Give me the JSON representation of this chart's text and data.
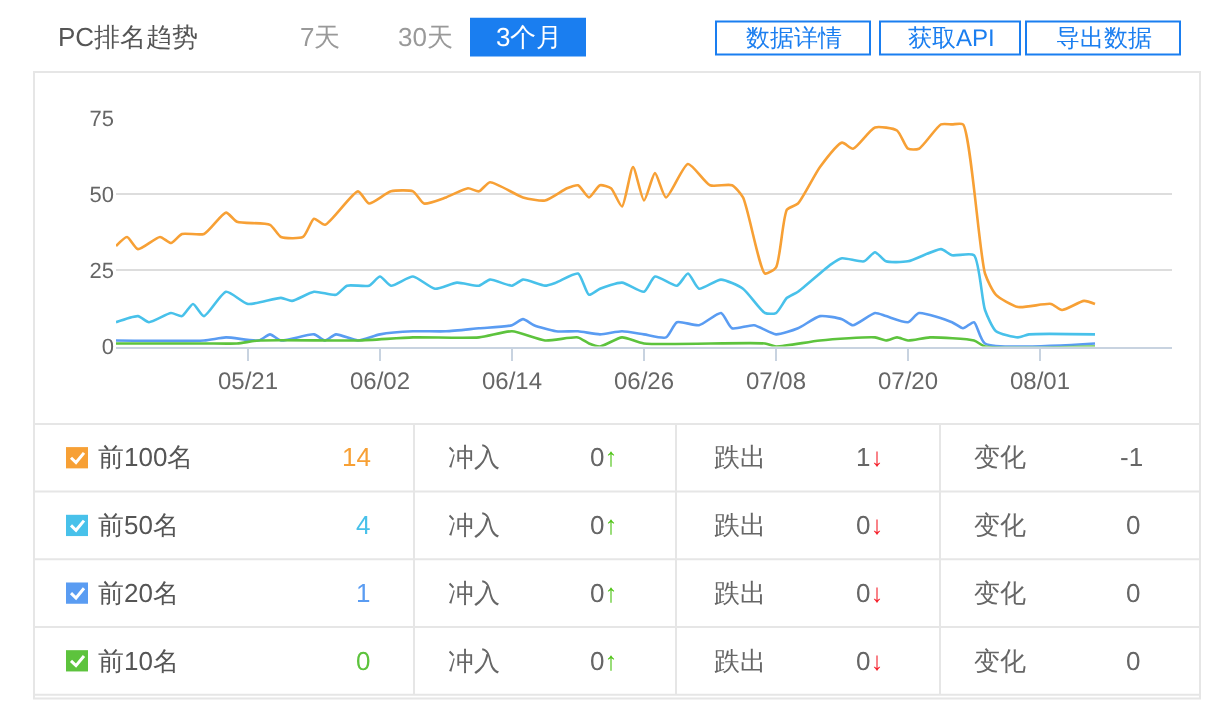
{
  "chart_data": {
    "type": "line",
    "title": "PC排名趋势",
    "xlim": [
      "--05-09",
      "--08-13"
    ],
    "xticks": [
      {
        "value": "--05-21",
        "label": "05/21"
      },
      {
        "value": "--06-02",
        "label": "06/02"
      },
      {
        "value": "--06-14",
        "label": "06/14"
      },
      {
        "value": "--06-26",
        "label": "06/26"
      },
      {
        "value": "--07-08",
        "label": "07/08"
      },
      {
        "value": "--07-20",
        "label": "07/20"
      },
      {
        "value": "--08-01",
        "label": "08/01"
      }
    ],
    "ylim": [
      0,
      75
    ],
    "yticks": [
      0,
      25,
      50,
      75
    ],
    "grid": "y",
    "marker": "none",
    "line_style": "solid",
    "legend": "bottom",
    "series": [
      {
        "name": "前100名",
        "color": "#f7a035",
        "x": [
          "--05-09",
          "--05-10",
          "--05-11",
          "--05-13",
          "--05-14",
          "--05-15",
          "--05-17",
          "--05-19",
          "--05-20",
          "--05-23",
          "--05-24",
          "--05-26",
          "--05-27",
          "--05-28",
          "--05-31",
          "--06-01",
          "--06-03",
          "--06-05",
          "--06-06",
          "--06-08",
          "--06-10",
          "--06-11",
          "--06-12",
          "--06-15",
          "--06-17",
          "--06-19",
          "--06-20",
          "--06-21",
          "--06-22",
          "--06-23",
          "--06-24",
          "--06-25",
          "--06-26",
          "--06-27",
          "--06-28",
          "--06-30",
          "--07-02",
          "--07-04",
          "--07-05",
          "--07-07",
          "--07-08",
          "--07-09",
          "--07-10",
          "--07-12",
          "--07-14",
          "--07-15",
          "--07-17",
          "--07-19",
          "--07-20",
          "--07-21",
          "--07-23",
          "--07-24",
          "--07-25",
          "--07-27",
          "--07-28",
          "--07-30",
          "--08-02",
          "--08-03",
          "--08-05",
          "--08-06"
        ],
        "values": [
          33,
          36,
          32,
          36,
          34,
          37,
          37,
          44,
          41,
          40,
          36,
          36,
          42,
          40,
          51,
          47,
          51,
          51,
          47,
          49,
          52,
          51,
          54,
          49,
          48,
          52,
          53,
          49,
          53,
          52,
          46,
          59,
          48,
          57,
          49,
          60,
          53,
          53,
          49,
          24,
          26,
          45,
          47,
          59,
          67,
          65,
          72,
          71,
          65,
          65,
          73,
          73,
          73,
          24,
          17,
          13,
          14,
          12,
          15,
          14
        ]
      },
      {
        "name": "前50名",
        "color": "#48c1ea",
        "x": [
          "--05-09",
          "--05-11",
          "--05-12",
          "--05-14",
          "--05-15",
          "--05-16",
          "--05-17",
          "--05-19",
          "--05-21",
          "--05-24",
          "--05-25",
          "--05-27",
          "--05-29",
          "--05-30",
          "--06-01",
          "--06-02",
          "--06-03",
          "--06-05",
          "--06-07",
          "--06-09",
          "--06-11",
          "--06-12",
          "--06-14",
          "--06-15",
          "--06-17",
          "--06-18",
          "--06-20",
          "--06-21",
          "--06-22",
          "--06-24",
          "--06-26",
          "--06-27",
          "--06-29",
          "--06-30",
          "--07-01",
          "--07-03",
          "--07-05",
          "--07-07",
          "--07-08",
          "--07-09",
          "--07-10",
          "--07-13",
          "--07-14",
          "--07-16",
          "--07-17",
          "--07-18",
          "--07-20",
          "--07-23",
          "--07-24",
          "--07-26",
          "--07-27",
          "--07-28",
          "--07-30",
          "--07-31",
          "--08-06"
        ],
        "values": [
          8,
          10,
          8,
          11,
          10,
          14,
          10,
          18,
          14,
          16,
          15,
          18,
          17,
          20,
          20,
          23,
          20,
          23,
          19,
          21,
          20,
          22,
          20,
          22,
          20,
          21,
          24,
          17,
          19,
          21,
          18,
          23,
          20,
          24,
          19,
          22,
          19,
          11,
          11,
          16,
          18,
          27,
          29,
          28,
          31,
          28,
          28,
          32,
          30,
          30,
          12,
          5,
          3,
          4,
          4
        ]
      },
      {
        "name": "前20名",
        "color": "#5a9cf2",
        "x": [
          "--05-09",
          "--05-17",
          "--05-19",
          "--05-22",
          "--05-23",
          "--05-24",
          "--05-27",
          "--05-28",
          "--05-29",
          "--05-31",
          "--06-02",
          "--06-05",
          "--06-08",
          "--06-11",
          "--06-14",
          "--06-15",
          "--06-16",
          "--06-18",
          "--06-20",
          "--06-22",
          "--06-24",
          "--06-26",
          "--06-28",
          "--06-29",
          "--07-01",
          "--07-03",
          "--07-04",
          "--07-06",
          "--07-08",
          "--07-10",
          "--07-12",
          "--07-14",
          "--07-15",
          "--07-17",
          "--07-18",
          "--07-20",
          "--07-21",
          "--07-24",
          "--07-25",
          "--07-26",
          "--07-27",
          "--08-06"
        ],
        "values": [
          2,
          2,
          3,
          2,
          4,
          2,
          4,
          2,
          4,
          2,
          4,
          5,
          5,
          6,
          7,
          9,
          7,
          5,
          5,
          4,
          5,
          4,
          3,
          8,
          7,
          11,
          6,
          7,
          4,
          6,
          10,
          9,
          7,
          11,
          10,
          8,
          11,
          8,
          6,
          8,
          1,
          1
        ]
      },
      {
        "name": "前10名",
        "color": "#5dc33d",
        "x": [
          "--05-09",
          "--05-17",
          "--05-20",
          "--05-22",
          "--05-31",
          "--06-05",
          "--06-11",
          "--06-14",
          "--06-17",
          "--06-20",
          "--06-21",
          "--06-22",
          "--06-24",
          "--06-26",
          "--07-07",
          "--07-08",
          "--07-12",
          "--07-17",
          "--07-18",
          "--07-19",
          "--07-20",
          "--07-22",
          "--07-26",
          "--07-27",
          "--08-06"
        ],
        "values": [
          1,
          1,
          1,
          2,
          2,
          3,
          3,
          5,
          2,
          3,
          1,
          0,
          3,
          1,
          1,
          0,
          2,
          3,
          2,
          3,
          2,
          3,
          2,
          0,
          0
        ]
      }
    ],
    "annotations": [
      "7天",
      "30天",
      "3个月",
      "数据详情",
      "获取API",
      "导出数据",
      "14",
      "冲入",
      "0↑",
      "跌出",
      "1↓",
      "变化",
      "-1",
      "4",
      "冲入",
      "0↑",
      "跌出",
      "0↓",
      "变化",
      "0",
      "1",
      "冲入",
      "0↑",
      "跌出",
      "0↓",
      "变化",
      "0",
      "0",
      "冲入",
      "0↑",
      "跌出",
      "0↓",
      "变化",
      "0"
    ]
  }
}
